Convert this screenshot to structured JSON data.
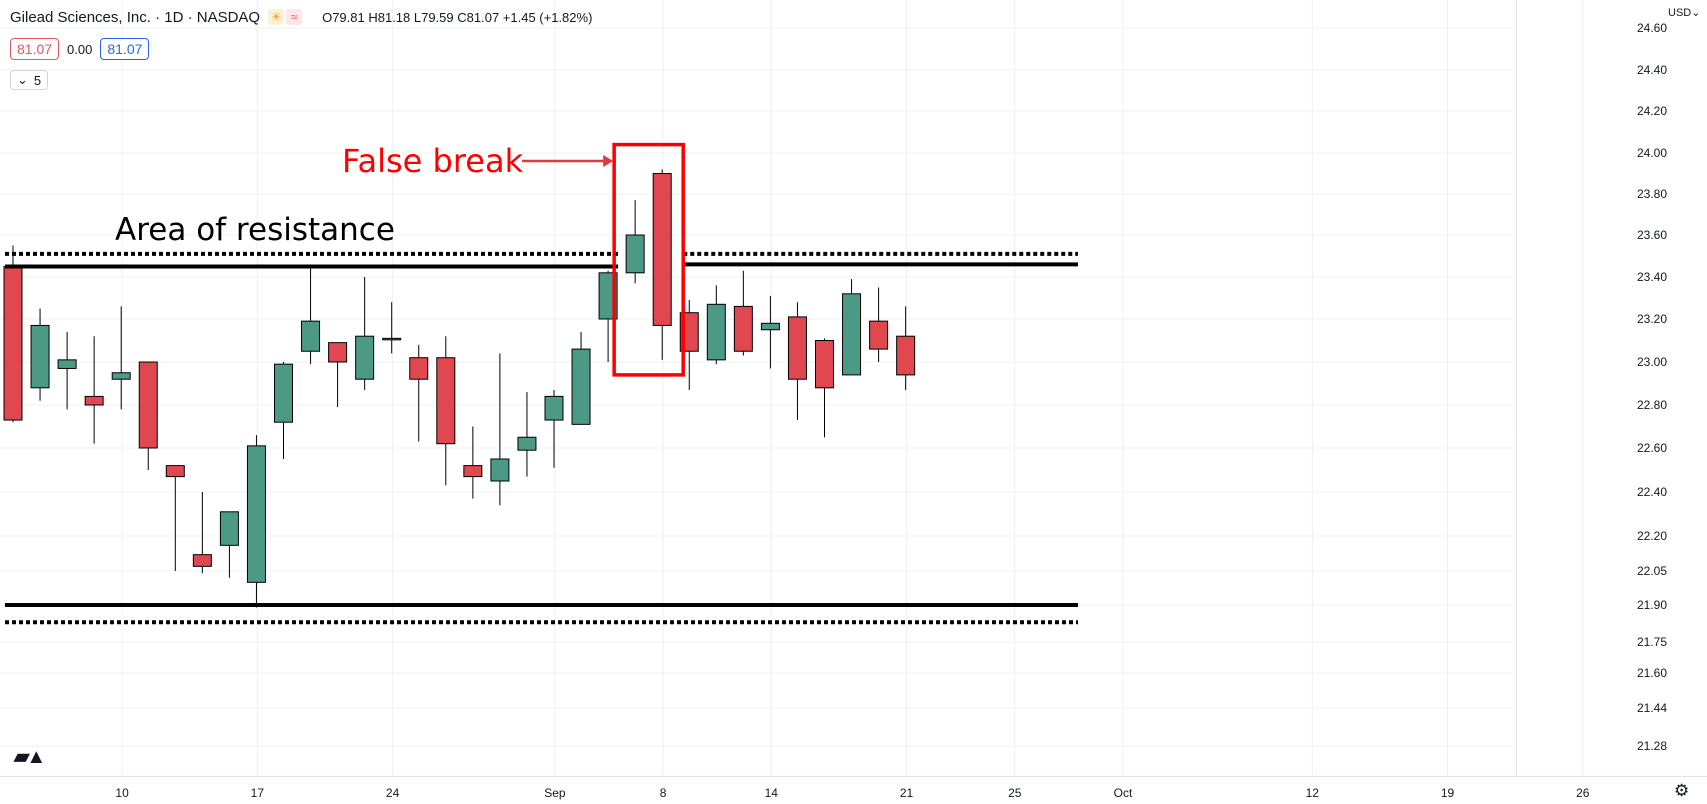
{
  "header": {
    "title": "Gilead Sciences, Inc. · 1D · NASDAQ",
    "ohlc": "O79.81 H81.18 L79.59 C81.07 +1.45 (+1.82%)",
    "sun_icon": "sun-icon",
    "wave_icon": "wave-icon",
    "bid": "81.07",
    "spread": "0.00",
    "ask": "81.07",
    "indicators_toggle": "5"
  },
  "currency": "USD",
  "settings_icon": "gear-icon",
  "logo": "tradingview-logo",
  "colors": {
    "up": "#4c9a86",
    "down": "#e0474f",
    "grid": "#eef0f3",
    "text": "#131722",
    "annotation_red": "#ff0000"
  },
  "annotations": {
    "resistance_label": "Area of resistance",
    "false_break_label": "False break"
  },
  "chart_data": {
    "type": "candlestick",
    "title": "Gilead Sciences, Inc. · 1D · NASDAQ",
    "ylim": [
      21.15,
      24.62
    ],
    "y_ticks": [
      "24.60",
      "24.40",
      "24.20",
      "24.00",
      "23.80",
      "23.60",
      "23.40",
      "23.20",
      "23.00",
      "22.80",
      "22.60",
      "22.40",
      "22.20",
      "22.05",
      "21.90",
      "21.75",
      "21.60",
      "21.44",
      "21.28"
    ],
    "x_ticks": [
      {
        "label": "10",
        "bar": 2
      },
      {
        "label": "17",
        "bar": 7
      },
      {
        "label": "24",
        "bar": 12
      },
      {
        "label": "Sep",
        "bar": 18
      },
      {
        "label": "8",
        "bar": 22
      },
      {
        "label": "14",
        "bar": 26
      },
      {
        "label": "21",
        "bar": 31
      },
      {
        "label": "25",
        "bar": 35
      },
      {
        "label": "Oct",
        "bar": 39
      },
      {
        "label": "12",
        "bar": 46
      },
      {
        "label": "19",
        "bar": 51
      },
      {
        "label": "26",
        "bar": 56
      }
    ],
    "candles": [
      {
        "o": 23.45,
        "h": 23.55,
        "l": 22.72,
        "c": 22.73
      },
      {
        "o": 22.88,
        "h": 23.25,
        "l": 22.82,
        "c": 23.17
      },
      {
        "o": 22.97,
        "h": 23.14,
        "l": 22.78,
        "c": 23.01
      },
      {
        "o": 22.84,
        "h": 23.12,
        "l": 22.62,
        "c": 22.8
      },
      {
        "o": 22.92,
        "h": 23.26,
        "l": 22.78,
        "c": 22.95
      },
      {
        "o": 23.0,
        "h": 23.0,
        "l": 22.5,
        "c": 22.6
      },
      {
        "o": 22.52,
        "h": 22.52,
        "l": 22.05,
        "c": 22.47
      },
      {
        "o": 22.12,
        "h": 22.4,
        "l": 22.04,
        "c": 22.07
      },
      {
        "o": 22.16,
        "h": 22.31,
        "l": 22.02,
        "c": 22.31
      },
      {
        "o": 22.0,
        "h": 22.66,
        "l": 21.89,
        "c": 22.61
      },
      {
        "o": 22.72,
        "h": 23.0,
        "l": 22.55,
        "c": 22.99
      },
      {
        "o": 23.05,
        "h": 23.44,
        "l": 22.99,
        "c": 23.19
      },
      {
        "o": 23.09,
        "h": 23.09,
        "l": 22.79,
        "c": 23.0
      },
      {
        "o": 22.92,
        "h": 23.4,
        "l": 22.87,
        "c": 23.12
      },
      {
        "o": 23.11,
        "h": 23.28,
        "l": 23.04,
        "c": 23.11
      },
      {
        "o": 23.02,
        "h": 23.08,
        "l": 22.63,
        "c": 22.92
      },
      {
        "o": 23.02,
        "h": 23.12,
        "l": 22.43,
        "c": 22.62
      },
      {
        "o": 22.52,
        "h": 22.7,
        "l": 22.37,
        "c": 22.47
      },
      {
        "o": 22.45,
        "h": 23.04,
        "l": 22.34,
        "c": 22.55
      },
      {
        "o": 22.59,
        "h": 22.86,
        "l": 22.47,
        "c": 22.65
      },
      {
        "o": 22.73,
        "h": 22.87,
        "l": 22.51,
        "c": 22.84
      },
      {
        "o": 22.71,
        "h": 23.14,
        "l": 22.71,
        "c": 23.06
      },
      {
        "o": 23.2,
        "h": 23.43,
        "l": 23.0,
        "c": 23.42
      },
      {
        "o": 23.42,
        "h": 23.77,
        "l": 23.37,
        "c": 23.6
      },
      {
        "o": 23.9,
        "h": 23.92,
        "l": 23.01,
        "c": 23.17
      },
      {
        "o": 23.23,
        "h": 23.29,
        "l": 22.87,
        "c": 23.05
      },
      {
        "o": 23.01,
        "h": 23.36,
        "l": 22.99,
        "c": 23.27
      },
      {
        "o": 23.26,
        "h": 23.43,
        "l": 23.03,
        "c": 23.05
      },
      {
        "o": 23.15,
        "h": 23.31,
        "l": 22.97,
        "c": 23.18
      },
      {
        "o": 23.21,
        "h": 23.28,
        "l": 22.73,
        "c": 22.92
      },
      {
        "o": 23.1,
        "h": 23.11,
        "l": 22.65,
        "c": 22.88
      },
      {
        "o": 22.94,
        "h": 23.39,
        "l": 22.94,
        "c": 23.32
      },
      {
        "o": 23.19,
        "h": 23.35,
        "l": 23.0,
        "c": 23.06
      },
      {
        "o": 23.12,
        "h": 23.26,
        "l": 22.87,
        "c": 22.94
      }
    ],
    "levels": [
      {
        "name": "resistance-solid-left",
        "y": 23.45,
        "style": "solid",
        "from_bar": 0,
        "to_bar": 22
      },
      {
        "name": "resistance-dotted-left",
        "y": 23.51,
        "style": "dotted",
        "from_bar": 0,
        "to_bar": 22
      },
      {
        "name": "resistance-solid-right",
        "y": 23.46,
        "style": "solid",
        "from_bar": 25,
        "to_bar": 39
      },
      {
        "name": "resistance-dotted-right",
        "y": 23.51,
        "style": "dotted",
        "from_bar": 25,
        "to_bar": 39
      },
      {
        "name": "support-solid",
        "y": 21.9,
        "style": "solid",
        "from_bar": 0,
        "to_bar": 39
      },
      {
        "name": "support-dotted",
        "y": 21.83,
        "style": "dotted",
        "from_bar": 0,
        "to_bar": 39
      }
    ],
    "highlight": {
      "from_bar": 23,
      "to_bar": 24,
      "y_top": 24.04,
      "y_bottom": 22.94
    }
  }
}
